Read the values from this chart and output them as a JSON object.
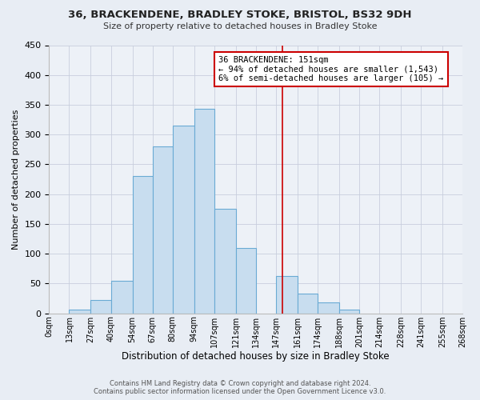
{
  "title1": "36, BRACKENDENE, BRADLEY STOKE, BRISTOL, BS32 9DH",
  "title2": "Size of property relative to detached houses in Bradley Stoke",
  "xlabel": "Distribution of detached houses by size in Bradley Stoke",
  "ylabel": "Number of detached properties",
  "bin_edges": [
    0,
    13,
    27,
    40,
    54,
    67,
    80,
    94,
    107,
    121,
    134,
    147,
    161,
    174,
    188,
    201,
    214,
    228,
    241,
    255,
    268
  ],
  "bin_heights": [
    0,
    6,
    22,
    55,
    230,
    280,
    315,
    343,
    175,
    110,
    0,
    63,
    33,
    19,
    6,
    0,
    0,
    0,
    0,
    0
  ],
  "bar_color": "#c8ddef",
  "bar_edge_color": "#6aaad4",
  "vline_x": 151,
  "vline_color": "#cc0000",
  "annotation_title": "36 BRACKENDENE: 151sqm",
  "annotation_line1": "← 94% of detached houses are smaller (1,543)",
  "annotation_line2": "6% of semi-detached houses are larger (105) →",
  "annotation_box_facecolor": "#ffffff",
  "annotation_box_edgecolor": "#cc0000",
  "tick_labels": [
    "0sqm",
    "13sqm",
    "27sqm",
    "40sqm",
    "54sqm",
    "67sqm",
    "80sqm",
    "94sqm",
    "107sqm",
    "121sqm",
    "134sqm",
    "147sqm",
    "161sqm",
    "174sqm",
    "188sqm",
    "201sqm",
    "214sqm",
    "228sqm",
    "241sqm",
    "255sqm",
    "268sqm"
  ],
  "ylim": [
    0,
    450
  ],
  "yticks": [
    0,
    50,
    100,
    150,
    200,
    250,
    300,
    350,
    400,
    450
  ],
  "footnote1": "Contains HM Land Registry data © Crown copyright and database right 2024.",
  "footnote2": "Contains public sector information licensed under the Open Government Licence v3.0.",
  "fig_bg_color": "#e8edf4",
  "plot_bg_color": "#edf1f7",
  "grid_color": "#c8cedd"
}
